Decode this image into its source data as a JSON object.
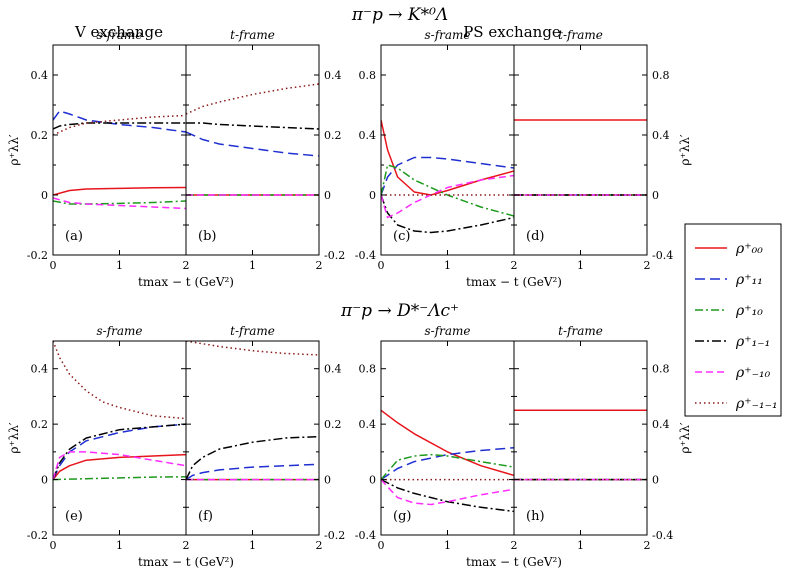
{
  "titles": {
    "top": "π⁻p → K*⁰Λ",
    "bottom": "π⁻p → D*⁻Λc⁺",
    "v_exchange": "V exchange",
    "ps_exchange": "PS exchange"
  },
  "frames": {
    "s": "s-frame",
    "t": "t-frame"
  },
  "axis": {
    "xlabel": "tmax − t (GeV²)",
    "ylabel": "ρ⁺λλ′"
  },
  "colors": {
    "r00": "#e8141b",
    "r11": "#1f2fd1",
    "r10": "#1d9a1d",
    "r1m1": "#000000",
    "rm10": "#ff2bff",
    "rm1m1": "#8b1a1a"
  },
  "legend": [
    {
      "key": "r00",
      "label": "ρ⁺₀₀"
    },
    {
      "key": "r11",
      "label": "ρ⁺₁₁"
    },
    {
      "key": "r10",
      "label": "ρ⁺₁₀"
    },
    {
      "key": "r1m1",
      "label": "ρ⁺₁₋₁"
    },
    {
      "key": "rm10",
      "label": "ρ⁺₋₁₀"
    },
    {
      "key": "rm1m1",
      "label": "ρ⁺₋₁₋₁"
    }
  ],
  "chart_data": [
    {
      "type": "line",
      "panel": "a",
      "frame": "s",
      "group": "V exchange",
      "reaction": "K*0 Lambda",
      "xlim": [
        0,
        2
      ],
      "ylim": [
        -0.2,
        0.5
      ],
      "yticks": [
        -0.2,
        0,
        0.2,
        0.4
      ],
      "xticks": [
        0,
        1,
        2
      ],
      "series": [
        {
          "name": "rho00",
          "key": "r00",
          "x": [
            0,
            0.25,
            0.5,
            1,
            1.5,
            2
          ],
          "values": [
            0.0,
            0.015,
            0.02,
            0.022,
            0.024,
            0.025
          ]
        },
        {
          "name": "rho11",
          "key": "r11",
          "x": [
            0,
            0.1,
            0.25,
            0.5,
            1,
            1.5,
            2
          ],
          "values": [
            0.25,
            0.28,
            0.27,
            0.25,
            0.235,
            0.225,
            0.21
          ]
        },
        {
          "name": "rho10",
          "key": "r10",
          "x": [
            0,
            0.25,
            0.5,
            1,
            1.5,
            2
          ],
          "values": [
            -0.02,
            -0.03,
            -0.03,
            -0.028,
            -0.025,
            -0.02
          ]
        },
        {
          "name": "rho1-1",
          "key": "r1m1",
          "x": [
            0,
            0.1,
            0.25,
            0.5,
            1,
            1.5,
            2
          ],
          "values": [
            0.22,
            0.23,
            0.235,
            0.24,
            0.24,
            0.24,
            0.24
          ]
        },
        {
          "name": "rho-10",
          "key": "rm10",
          "x": [
            0,
            0.25,
            0.5,
            1,
            1.5,
            2
          ],
          "values": [
            -0.01,
            -0.025,
            -0.03,
            -0.035,
            -0.04,
            -0.045
          ]
        },
        {
          "name": "rho-1-1",
          "key": "rm1m1",
          "x": [
            0,
            0.25,
            0.5,
            1,
            1.5,
            2
          ],
          "values": [
            0.2,
            0.225,
            0.24,
            0.25,
            0.26,
            0.265
          ]
        }
      ]
    },
    {
      "type": "line",
      "panel": "b",
      "frame": "t",
      "group": "V exchange",
      "reaction": "K*0 Lambda",
      "xlim": [
        0,
        2
      ],
      "ylim": [
        -0.2,
        0.5
      ],
      "yticks": [
        -0.2,
        0,
        0.2,
        0.4
      ],
      "xticks": [
        0,
        1,
        2
      ],
      "series": [
        {
          "name": "rho00",
          "key": "r00",
          "x": [
            0,
            2
          ],
          "values": [
            0,
            0
          ]
        },
        {
          "name": "rho11",
          "key": "r11",
          "x": [
            0,
            0.25,
            0.5,
            1,
            1.5,
            2
          ],
          "values": [
            0.21,
            0.185,
            0.17,
            0.155,
            0.14,
            0.13
          ]
        },
        {
          "name": "rho10",
          "key": "r10",
          "x": [
            0,
            2
          ],
          "values": [
            0,
            0
          ]
        },
        {
          "name": "rho1-1",
          "key": "r1m1",
          "x": [
            0,
            0.25,
            0.5,
            1,
            1.5,
            2
          ],
          "values": [
            0.24,
            0.24,
            0.235,
            0.23,
            0.225,
            0.22
          ]
        },
        {
          "name": "rho-10",
          "key": "rm10",
          "x": [
            0,
            2
          ],
          "values": [
            0,
            0
          ]
        },
        {
          "name": "rho-1-1",
          "key": "rm1m1",
          "x": [
            0,
            0.25,
            0.5,
            1,
            1.5,
            2
          ],
          "values": [
            0.27,
            0.295,
            0.31,
            0.335,
            0.355,
            0.37
          ]
        }
      ]
    },
    {
      "type": "line",
      "panel": "c",
      "frame": "s",
      "group": "PS exchange",
      "reaction": "K*0 Lambda",
      "xlim": [
        0,
        2
      ],
      "ylim": [
        -0.4,
        1.0
      ],
      "yticks": [
        -0.4,
        0,
        0.4,
        0.8
      ],
      "xticks": [
        0,
        1,
        2
      ],
      "series": [
        {
          "name": "rho00",
          "key": "r00",
          "x": [
            0,
            0.1,
            0.25,
            0.5,
            0.75,
            1,
            1.5,
            2
          ],
          "values": [
            0.5,
            0.3,
            0.12,
            0.02,
            0.0,
            0.03,
            0.1,
            0.16
          ]
        },
        {
          "name": "rho11",
          "key": "r11",
          "x": [
            0,
            0.1,
            0.25,
            0.5,
            0.75,
            1,
            1.5,
            2
          ],
          "values": [
            0.0,
            0.12,
            0.2,
            0.25,
            0.25,
            0.24,
            0.21,
            0.18
          ]
        },
        {
          "name": "rho10",
          "key": "r10",
          "x": [
            0,
            0.1,
            0.25,
            0.5,
            1,
            1.5,
            2
          ],
          "values": [
            0.0,
            0.2,
            0.18,
            0.1,
            0.0,
            -0.08,
            -0.14
          ]
        },
        {
          "name": "rho1-1",
          "key": "r1m1",
          "x": [
            0,
            0.1,
            0.25,
            0.5,
            0.75,
            1,
            1.5,
            2
          ],
          "values": [
            0.0,
            -0.12,
            -0.2,
            -0.24,
            -0.25,
            -0.24,
            -0.2,
            -0.15
          ]
        },
        {
          "name": "rho-10",
          "key": "rm10",
          "x": [
            0,
            0.1,
            0.25,
            0.5,
            0.75,
            1,
            1.5,
            2
          ],
          "values": [
            0.0,
            -0.15,
            -0.12,
            -0.05,
            0.0,
            0.05,
            0.1,
            0.13
          ]
        },
        {
          "name": "rho-1-1",
          "key": "rm1m1",
          "x": [
            0,
            2
          ],
          "values": [
            0,
            0
          ]
        }
      ]
    },
    {
      "type": "line",
      "panel": "d",
      "frame": "t",
      "group": "PS exchange",
      "reaction": "K*0 Lambda",
      "xlim": [
        0,
        2
      ],
      "ylim": [
        -0.4,
        1.0
      ],
      "yticks": [
        -0.4,
        0,
        0.4,
        0.8
      ],
      "xticks": [
        0,
        1,
        2
      ],
      "series": [
        {
          "name": "rho00",
          "key": "r00",
          "x": [
            0,
            2
          ],
          "values": [
            0.5,
            0.5
          ]
        },
        {
          "name": "rho11",
          "key": "r11",
          "x": [
            0,
            2
          ],
          "values": [
            0,
            0
          ]
        },
        {
          "name": "rho10",
          "key": "r10",
          "x": [
            0,
            2
          ],
          "values": [
            0,
            0
          ]
        },
        {
          "name": "rho1-1",
          "key": "r1m1",
          "x": [
            0,
            2
          ],
          "values": [
            0,
            0
          ]
        },
        {
          "name": "rho-10",
          "key": "rm10",
          "x": [
            0,
            2
          ],
          "values": [
            0,
            0
          ]
        },
        {
          "name": "rho-1-1",
          "key": "rm1m1",
          "x": [
            0,
            2
          ],
          "values": [
            0,
            0
          ]
        }
      ]
    },
    {
      "type": "line",
      "panel": "e",
      "frame": "s",
      "group": "V exchange",
      "reaction": "D*- Lambda_c+",
      "xlim": [
        0,
        2
      ],
      "ylim": [
        -0.2,
        0.5
      ],
      "yticks": [
        -0.2,
        0,
        0.2,
        0.4
      ],
      "xticks": [
        0,
        1,
        2
      ],
      "series": [
        {
          "name": "rho00",
          "key": "r00",
          "x": [
            0,
            0.1,
            0.25,
            0.5,
            1,
            1.5,
            2
          ],
          "values": [
            0.0,
            0.03,
            0.05,
            0.07,
            0.08,
            0.085,
            0.09
          ]
        },
        {
          "name": "rho11",
          "key": "r11",
          "x": [
            0,
            0.1,
            0.25,
            0.5,
            1,
            1.5,
            2
          ],
          "values": [
            0.0,
            0.05,
            0.1,
            0.14,
            0.17,
            0.19,
            0.2
          ]
        },
        {
          "name": "rho10",
          "key": "r10",
          "x": [
            0,
            0.5,
            1,
            1.5,
            2
          ],
          "values": [
            0.0,
            0.003,
            0.006,
            0.009,
            0.01
          ]
        },
        {
          "name": "rho1-1",
          "key": "r1m1",
          "x": [
            0,
            0.1,
            0.25,
            0.5,
            1,
            1.5,
            2
          ],
          "values": [
            0.0,
            0.06,
            0.11,
            0.15,
            0.18,
            0.19,
            0.2
          ]
        },
        {
          "name": "rho-10",
          "key": "rm10",
          "x": [
            0,
            0.1,
            0.25,
            0.5,
            1,
            1.5,
            2
          ],
          "values": [
            0.0,
            0.08,
            0.1,
            0.1,
            0.09,
            0.07,
            0.05
          ]
        },
        {
          "name": "rho-1-1",
          "key": "rm1m1",
          "x": [
            0,
            0.1,
            0.25,
            0.5,
            0.75,
            1,
            1.5,
            2
          ],
          "values": [
            0.5,
            0.44,
            0.38,
            0.32,
            0.28,
            0.26,
            0.23,
            0.22
          ]
        }
      ]
    },
    {
      "type": "line",
      "panel": "f",
      "frame": "t",
      "group": "V exchange",
      "reaction": "D*- Lambda_c+",
      "xlim": [
        0,
        2
      ],
      "ylim": [
        -0.2,
        0.5
      ],
      "yticks": [
        -0.2,
        0,
        0.2,
        0.4
      ],
      "xticks": [
        0,
        1,
        2
      ],
      "series": [
        {
          "name": "rho00",
          "key": "r00",
          "x": [
            0,
            2
          ],
          "values": [
            0,
            0
          ]
        },
        {
          "name": "rho11",
          "key": "r11",
          "x": [
            0,
            0.1,
            0.25,
            0.5,
            1,
            1.5,
            2
          ],
          "values": [
            0.0,
            0.015,
            0.025,
            0.035,
            0.045,
            0.05,
            0.055
          ]
        },
        {
          "name": "rho10",
          "key": "r10",
          "x": [
            0,
            2
          ],
          "values": [
            0,
            0
          ]
        },
        {
          "name": "rho1-1",
          "key": "r1m1",
          "x": [
            0,
            0.1,
            0.25,
            0.5,
            1,
            1.5,
            2
          ],
          "values": [
            0.0,
            0.05,
            0.08,
            0.11,
            0.135,
            0.15,
            0.155
          ]
        },
        {
          "name": "rho-10",
          "key": "rm10",
          "x": [
            0,
            2
          ],
          "values": [
            0,
            0
          ]
        },
        {
          "name": "rho-1-1",
          "key": "rm1m1",
          "x": [
            0,
            0.5,
            1,
            1.5,
            2
          ],
          "values": [
            0.5,
            0.48,
            0.465,
            0.455,
            0.45
          ]
        }
      ]
    },
    {
      "type": "line",
      "panel": "g",
      "frame": "s",
      "group": "PS exchange",
      "reaction": "D*- Lambda_c+",
      "xlim": [
        0,
        2
      ],
      "ylim": [
        -0.4,
        1.0
      ],
      "yticks": [
        -0.4,
        0,
        0.4,
        0.8
      ],
      "xticks": [
        0,
        1,
        2
      ],
      "series": [
        {
          "name": "rho00",
          "key": "r00",
          "x": [
            0,
            0.25,
            0.5,
            1,
            1.5,
            2
          ],
          "values": [
            0.5,
            0.41,
            0.33,
            0.2,
            0.1,
            0.03
          ]
        },
        {
          "name": "rho11",
          "key": "r11",
          "x": [
            0,
            0.25,
            0.5,
            1,
            1.5,
            2
          ],
          "values": [
            0.0,
            0.08,
            0.13,
            0.18,
            0.21,
            0.23
          ]
        },
        {
          "name": "rho10",
          "key": "r10",
          "x": [
            0,
            0.25,
            0.5,
            0.75,
            1,
            1.5,
            2
          ],
          "values": [
            0.0,
            0.14,
            0.17,
            0.18,
            0.17,
            0.13,
            0.09
          ]
        },
        {
          "name": "rho1-1",
          "key": "r1m1",
          "x": [
            0,
            0.25,
            0.5,
            1,
            1.5,
            2
          ],
          "values": [
            0.0,
            -0.06,
            -0.1,
            -0.16,
            -0.2,
            -0.23
          ]
        },
        {
          "name": "rho-10",
          "key": "rm10",
          "x": [
            0,
            0.25,
            0.5,
            0.75,
            1,
            1.5,
            2
          ],
          "values": [
            0.0,
            -0.13,
            -0.17,
            -0.18,
            -0.16,
            -0.11,
            -0.07
          ]
        },
        {
          "name": "rho-1-1",
          "key": "rm1m1",
          "x": [
            0,
            2
          ],
          "values": [
            0,
            0
          ]
        }
      ]
    },
    {
      "type": "line",
      "panel": "h",
      "frame": "t",
      "group": "PS exchange",
      "reaction": "D*- Lambda_c+",
      "xlim": [
        0,
        2
      ],
      "ylim": [
        -0.4,
        1.0
      ],
      "yticks": [
        -0.4,
        0,
        0.4,
        0.8
      ],
      "xticks": [
        0,
        1,
        2
      ],
      "series": [
        {
          "name": "rho00",
          "key": "r00",
          "x": [
            0,
            2
          ],
          "values": [
            0.5,
            0.5
          ]
        },
        {
          "name": "rho11",
          "key": "r11",
          "x": [
            0,
            2
          ],
          "values": [
            0,
            0
          ]
        },
        {
          "name": "rho10",
          "key": "r10",
          "x": [
            0,
            2
          ],
          "values": [
            0,
            0
          ]
        },
        {
          "name": "rho1-1",
          "key": "r1m1",
          "x": [
            0,
            2
          ],
          "values": [
            0,
            0
          ]
        },
        {
          "name": "rho-10",
          "key": "rm10",
          "x": [
            0,
            2
          ],
          "values": [
            0,
            0
          ]
        },
        {
          "name": "rho-1-1",
          "key": "rm1m1",
          "x": [
            0,
            2
          ],
          "values": [
            0,
            0
          ]
        }
      ]
    }
  ]
}
